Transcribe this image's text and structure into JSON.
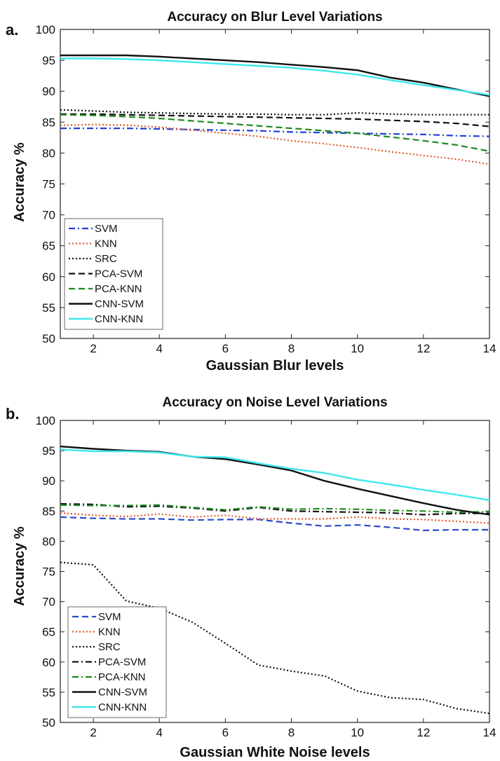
{
  "chart_data": [
    {
      "type": "line",
      "panel": "a.",
      "title": "Accuracy on Blur Level Variations",
      "xlabel": "Gaussian Blur levels",
      "ylabel": "Accuracy %",
      "xlim": [
        1,
        14
      ],
      "ylim": [
        50,
        100
      ],
      "xticks": [
        2,
        4,
        6,
        8,
        10,
        12,
        14
      ],
      "yticks": [
        50,
        55,
        60,
        65,
        70,
        75,
        80,
        85,
        90,
        95,
        100
      ],
      "grid": false,
      "legend_position": "bottom-left",
      "x": [
        1,
        2,
        3,
        4,
        5,
        6,
        7,
        8,
        9,
        10,
        11,
        12,
        13,
        14
      ],
      "series": [
        {
          "name": "SVM",
          "color": "#1f3fd6",
          "dash": "dashdot",
          "values": [
            84.0,
            84.0,
            84.0,
            83.9,
            83.8,
            83.7,
            83.6,
            83.4,
            83.3,
            83.2,
            83.1,
            83.0,
            82.8,
            82.7
          ]
        },
        {
          "name": "KNN",
          "color": "#e0592a",
          "dash": "dotted",
          "values": [
            84.5,
            84.6,
            84.5,
            84.2,
            83.7,
            83.2,
            82.7,
            82.0,
            81.5,
            80.9,
            80.2,
            79.6,
            79.0,
            78.2
          ]
        },
        {
          "name": "SRC",
          "color": "#111111",
          "dash": "dotted",
          "values": [
            87.0,
            86.8,
            86.6,
            86.5,
            86.4,
            86.3,
            86.3,
            86.2,
            86.2,
            86.5,
            86.3,
            86.2,
            86.2,
            86.2
          ]
        },
        {
          "name": "PCA-SVM",
          "color": "#111111",
          "dash": "dashed",
          "values": [
            86.3,
            86.3,
            86.2,
            86.1,
            86.0,
            85.9,
            85.8,
            85.7,
            85.6,
            85.5,
            85.3,
            85.1,
            84.8,
            84.3
          ]
        },
        {
          "name": "PCA-KNN",
          "color": "#1e8a1e",
          "dash": "dashed",
          "values": [
            86.2,
            86.1,
            85.9,
            85.6,
            85.2,
            84.8,
            84.4,
            84.0,
            83.6,
            83.2,
            82.6,
            82.0,
            81.3,
            80.3
          ]
        },
        {
          "name": "CNN-SVM",
          "color": "#111111",
          "dash": "solid",
          "values": [
            95.8,
            95.8,
            95.8,
            95.6,
            95.3,
            95.0,
            94.7,
            94.3,
            93.9,
            93.4,
            92.2,
            91.4,
            90.3,
            89.2
          ]
        },
        {
          "name": "CNN-KNN",
          "color": "#3de8ec",
          "dash": "solid",
          "values": [
            95.3,
            95.3,
            95.2,
            95.0,
            94.7,
            94.4,
            94.1,
            93.8,
            93.3,
            92.7,
            91.8,
            91.0,
            90.2,
            89.4
          ]
        }
      ]
    },
    {
      "type": "line",
      "panel": "b.",
      "title": "Accuracy on Noise Level Variations",
      "xlabel": "Gaussian White Noise levels",
      "ylabel": "Accuracy %",
      "xlim": [
        1,
        14
      ],
      "ylim": [
        50,
        100
      ],
      "xticks": [
        2,
        4,
        6,
        8,
        10,
        12,
        14
      ],
      "yticks": [
        50,
        55,
        60,
        65,
        70,
        75,
        80,
        85,
        90,
        95,
        100
      ],
      "grid": false,
      "legend_position": "bottom-left",
      "x": [
        1,
        2,
        3,
        4,
        5,
        6,
        7,
        8,
        9,
        10,
        11,
        12,
        13,
        14
      ],
      "series": [
        {
          "name": "SVM",
          "color": "#2a4cc8",
          "dash": "dashed",
          "values": [
            84.0,
            83.8,
            83.7,
            83.7,
            83.5,
            83.6,
            83.6,
            83.0,
            82.5,
            82.7,
            82.3,
            81.8,
            81.9,
            81.9
          ]
        },
        {
          "name": "KNN",
          "color": "#e0592a",
          "dash": "dotted",
          "values": [
            84.7,
            84.3,
            84.1,
            84.5,
            84.0,
            84.3,
            83.7,
            83.7,
            83.7,
            84.0,
            83.7,
            83.6,
            83.3,
            83.0
          ]
        },
        {
          "name": "SRC",
          "color": "#111111",
          "dash": "dotted",
          "values": [
            76.5,
            76.1,
            70.1,
            68.9,
            66.6,
            63.1,
            59.5,
            58.5,
            57.7,
            55.2,
            54.1,
            53.8,
            52.3,
            51.5
          ]
        },
        {
          "name": "PCA-SVM",
          "color": "#111111",
          "dash": "dashdot",
          "values": [
            86.2,
            86.1,
            85.7,
            85.8,
            85.5,
            85.0,
            85.6,
            85.0,
            84.9,
            84.8,
            84.7,
            84.4,
            84.6,
            84.6
          ]
        },
        {
          "name": "PCA-KNN",
          "color": "#1e8a1e",
          "dash": "dashdot",
          "values": [
            86.0,
            85.9,
            85.9,
            86.0,
            85.6,
            85.2,
            85.7,
            85.3,
            85.4,
            85.3,
            85.1,
            85.0,
            84.8,
            84.9
          ]
        },
        {
          "name": "CNN-SVM",
          "color": "#111111",
          "dash": "solid",
          "values": [
            95.7,
            95.3,
            95.0,
            94.8,
            94.0,
            93.6,
            92.7,
            91.7,
            90.0,
            88.7,
            87.5,
            86.3,
            85.2,
            84.4
          ]
        },
        {
          "name": "CNN-KNN",
          "color": "#3de8ec",
          "dash": "solid",
          "values": [
            95.2,
            94.9,
            94.9,
            94.7,
            94.0,
            93.9,
            92.9,
            92.0,
            91.3,
            90.2,
            89.4,
            88.5,
            87.7,
            86.8
          ]
        }
      ]
    }
  ]
}
